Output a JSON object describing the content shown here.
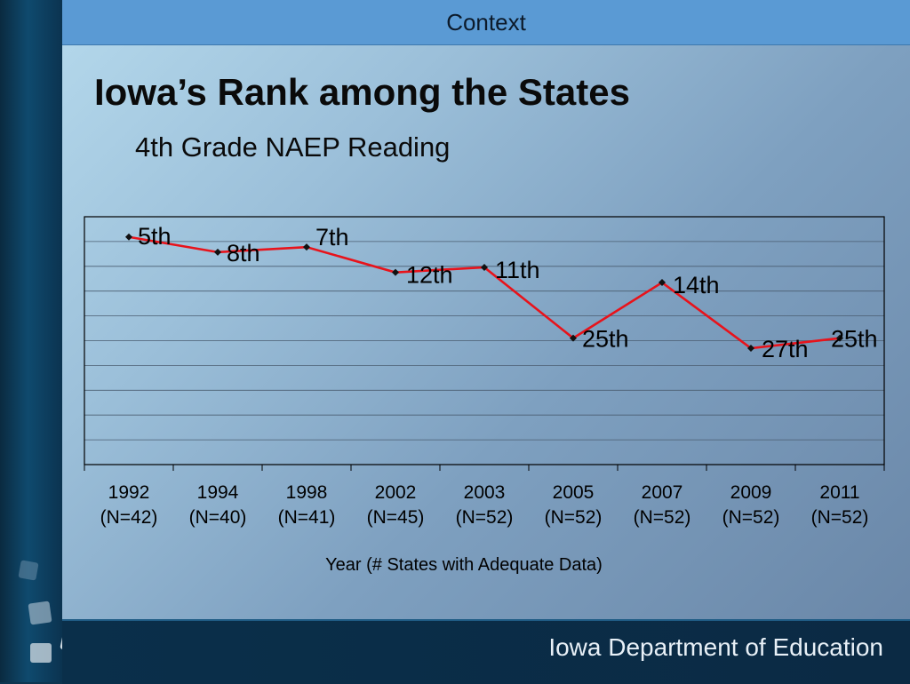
{
  "header": {
    "title": "Context"
  },
  "slide": {
    "title": "Iowa’s Rank among the States",
    "subtitle": "4th Grade NAEP Reading"
  },
  "footer": {
    "text": "Iowa Department of Education"
  },
  "colors": {
    "line": "#e8131b",
    "marker": "#111111",
    "header_band": "#5a9ad4"
  },
  "chart_data": {
    "type": "line",
    "categories": [
      "1992",
      "1994",
      "1998",
      "2002",
      "2003",
      "2005",
      "2007",
      "2009",
      "2011"
    ],
    "category_notes": [
      "(N=42)",
      "(N=40)",
      "(N=41)",
      "(N=45)",
      "(N=52)",
      "(N=52)",
      "(N=52)",
      "(N=52)",
      "(N=52)"
    ],
    "series": [
      {
        "values": [
          5,
          8,
          7,
          12,
          11,
          25,
          14,
          27,
          25
        ]
      }
    ],
    "data_labels": [
      "5th",
      "8th",
      "7th",
      "12th",
      "11th",
      "25th",
      "14th",
      "27th",
      "25th"
    ],
    "xlabel": "Year (# States with Adequate Data)",
    "ylabel": "",
    "ylim": [
      1,
      50
    ],
    "y_inverted": true,
    "grid": true,
    "legend": "none"
  }
}
